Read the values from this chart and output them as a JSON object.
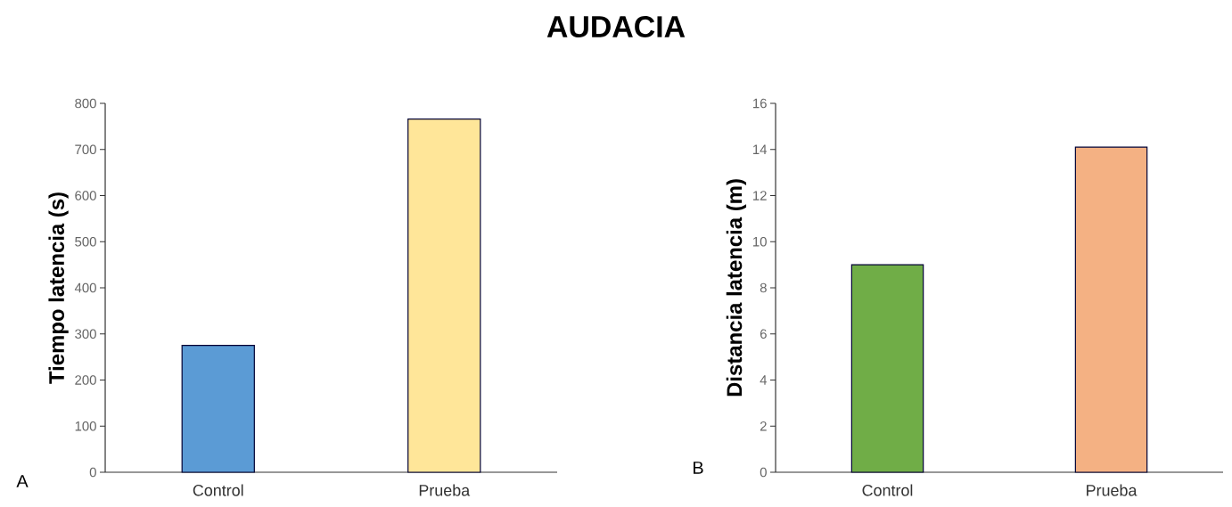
{
  "chart_data": [
    {
      "type": "bar",
      "title": "AUDACIA",
      "ylabel": "Tiempo latencia (s)",
      "categories": [
        "Control",
        "Prueba"
      ],
      "values": [
        275,
        766
      ],
      "colors": [
        "#5b9bd5",
        "#ffe699"
      ],
      "ylim": [
        0,
        800
      ],
      "yticks": [
        0,
        100,
        200,
        300,
        400,
        500,
        600,
        700,
        800
      ],
      "annotations": [
        "A"
      ]
    },
    {
      "type": "bar",
      "ylabel": "Distancia latencia (m)",
      "categories": [
        "Control",
        "Prueba"
      ],
      "values": [
        9.0,
        14.1
      ],
      "colors": [
        "#70ad47",
        "#f4b183"
      ],
      "ylim": [
        0,
        16
      ],
      "yticks": [
        0,
        2,
        4,
        6,
        8,
        10,
        12,
        14,
        16
      ],
      "annotations": [
        "B"
      ]
    }
  ]
}
